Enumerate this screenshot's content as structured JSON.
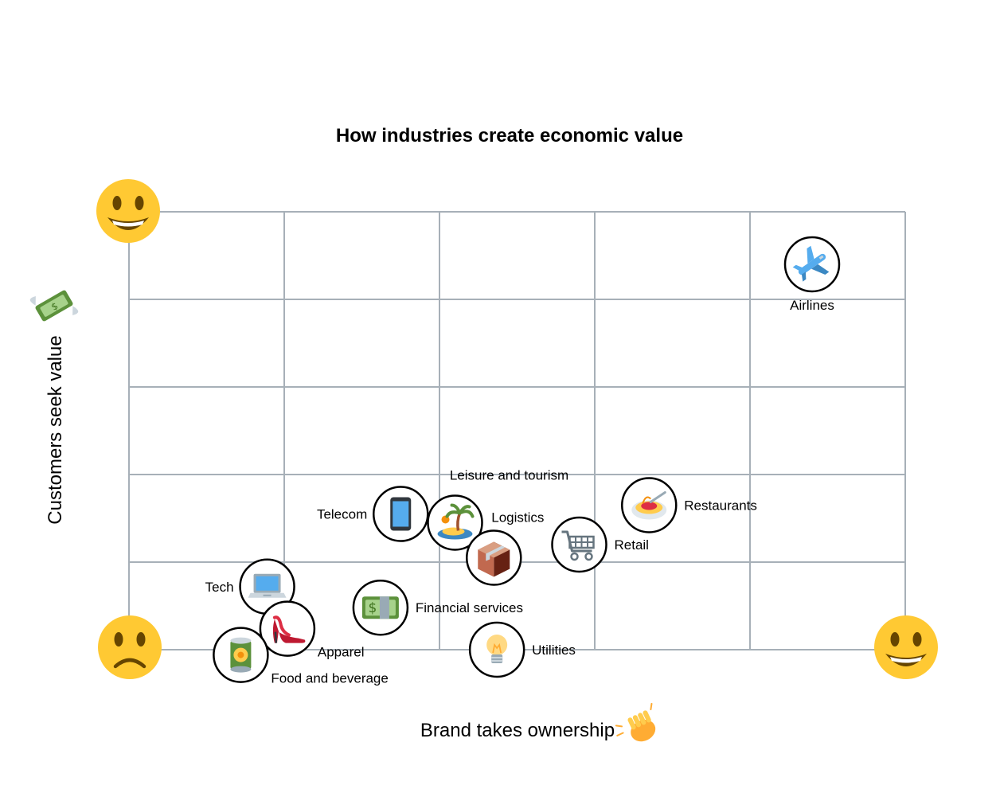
{
  "chart_data": {
    "type": "scatter",
    "title": "How industries create economic value",
    "xlabel": "Brand takes ownership",
    "ylabel": "Customers seek value",
    "xlim": [
      0,
      5
    ],
    "ylim": [
      0,
      5
    ],
    "grid": true,
    "axis_end_markers": {
      "origin": "frowning-face-icon",
      "y_max": "smiling-face-icon",
      "x_max": "smiling-face-icon",
      "x_axis_label_icon": "clapping-hands-icon",
      "y_axis_label_icon": "money-with-wings-icon"
    },
    "points": [
      {
        "label": "Airlines",
        "x": 4.4,
        "y": 4.4,
        "icon": "airplane-icon",
        "label_pos": "below"
      },
      {
        "label": "Restaurants",
        "x": 3.35,
        "y": 1.65,
        "icon": "spaghetti-icon",
        "label_pos": "right"
      },
      {
        "label": "Retail",
        "x": 2.9,
        "y": 1.2,
        "icon": "shopping-cart-icon",
        "label_pos": "right"
      },
      {
        "label": "Telecom",
        "x": 1.75,
        "y": 1.55,
        "icon": "mobile-phone-icon",
        "label_pos": "left"
      },
      {
        "label": "Leisure and tourism",
        "x": 2.1,
        "y": 1.45,
        "icon": "desert-island-icon",
        "label_pos": "above"
      },
      {
        "label": "Logistics",
        "x": 2.35,
        "y": 1.05,
        "icon": "package-icon",
        "label_pos": "above-right"
      },
      {
        "label": "Financial services",
        "x": 1.62,
        "y": 0.48,
        "icon": "banknote-icon",
        "label_pos": "right"
      },
      {
        "label": "Utilities",
        "x": 2.37,
        "y": 0.0,
        "icon": "light-bulb-icon",
        "label_pos": "right"
      },
      {
        "label": "Tech",
        "x": 0.89,
        "y": 0.72,
        "icon": "laptop-icon",
        "label_pos": "left"
      },
      {
        "label": "Apparel",
        "x": 1.02,
        "y": 0.24,
        "icon": "high-heel-icon",
        "label_pos": "below-right"
      },
      {
        "label": "Food and beverage",
        "x": 0.72,
        "y": -0.06,
        "icon": "food-can-icon",
        "label_pos": "below-right"
      }
    ]
  }
}
